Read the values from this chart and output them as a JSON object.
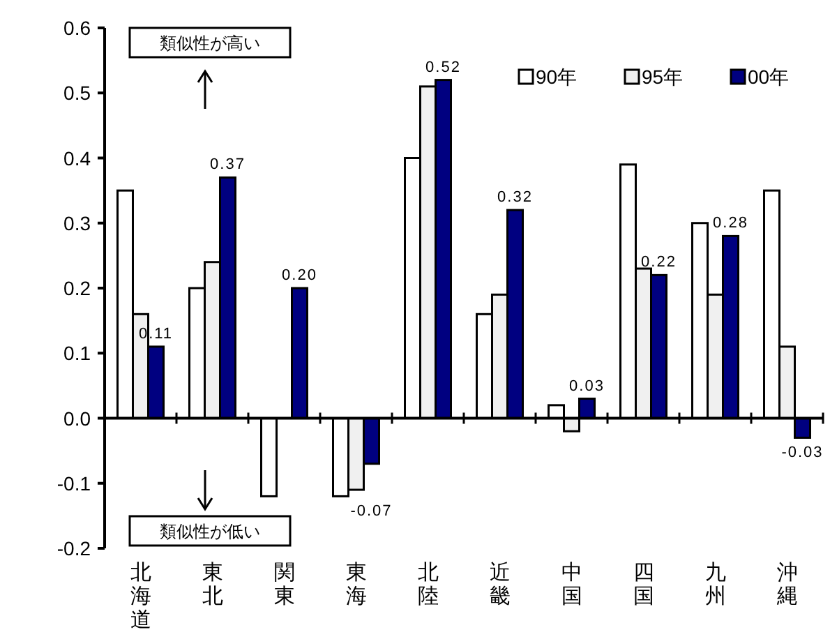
{
  "chart_data": {
    "type": "bar",
    "categories": [
      "北海道",
      "東北",
      "関東",
      "東海",
      "北陸",
      "近畿",
      "中国",
      "四国",
      "九州",
      "沖縄"
    ],
    "series": [
      {
        "name": "90年",
        "color": "#ffffff",
        "values": [
          0.35,
          0.2,
          -0.12,
          -0.12,
          0.4,
          0.16,
          0.02,
          0.39,
          0.3,
          0.35
        ]
      },
      {
        "name": "95年",
        "color": "#f0f0f0",
        "values": [
          0.16,
          0.24,
          0.0,
          -0.11,
          0.51,
          0.19,
          -0.02,
          0.23,
          0.19,
          0.11
        ]
      },
      {
        "name": "00年",
        "color": "#000080",
        "values": [
          0.11,
          0.37,
          0.2,
          -0.07,
          0.52,
          0.32,
          0.03,
          0.22,
          0.28,
          -0.03
        ],
        "value_labels": [
          "0.11",
          "0.37",
          "0.20",
          "-0.07",
          "0.52",
          "0.32",
          "0.03",
          "0.22",
          "0.28",
          "-0.03"
        ]
      }
    ],
    "ylim": [
      -0.2,
      0.6
    ],
    "yticks": [
      -0.2,
      -0.1,
      {
        "value": 0,
        "label": "0.0"
      },
      0.1,
      0.2,
      0.3,
      0.4,
      0.5,
      0.6
    ],
    "annotations": [
      "類似性が高い",
      "類似性が低い"
    ],
    "legend": "top right"
  }
}
